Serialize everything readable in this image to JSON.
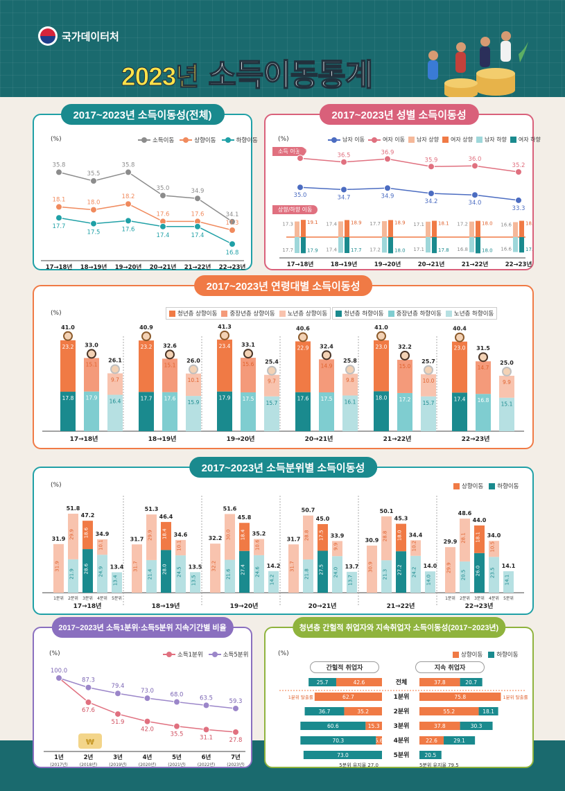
{
  "header": {
    "agency": "국가데이터처",
    "year": "2023년",
    "title": "소득이동통계"
  },
  "colors": {
    "teal": "#1a6a6e",
    "up": "#f08a5d",
    "down": "#1fa0a6",
    "gray": "#8c8c8c",
    "male": "#4b6cc1",
    "female": "#e0707f"
  },
  "p1": {
    "title": "2017~2023년 소득이동성(전체)",
    "unit": "(%)",
    "legend": [
      "소득이동",
      "상향이동",
      "하향이동"
    ],
    "chart_data": {
      "type": "line",
      "categories": [
        "17→18년",
        "18→19년",
        "19→20년",
        "20→21년",
        "21→22년",
        "22→23년"
      ],
      "series": [
        {
          "name": "소득이동",
          "values": [
            35.8,
            35.5,
            35.8,
            35.0,
            34.9,
            34.1
          ]
        },
        {
          "name": "상향이동",
          "values": [
            18.1,
            18.0,
            18.2,
            17.6,
            17.6,
            17.3
          ]
        },
        {
          "name": "하향이동",
          "values": [
            17.7,
            17.5,
            17.6,
            17.4,
            17.4,
            16.8
          ]
        }
      ]
    }
  },
  "p2": {
    "title": "2017~2023년 성별 소득이동성",
    "unit": "(%)",
    "legend": [
      "남자 이동",
      "여자 이동",
      "남자 상향",
      "여자 상향",
      "남자 하향",
      "여자 하향"
    ],
    "sec1": "소득 이동",
    "sec2": "상향/하향 이동",
    "chart_data": {
      "type": "line+bar",
      "categories": [
        "17→18년",
        "18→19년",
        "19→20년",
        "20→21년",
        "21→22년",
        "22→23년"
      ],
      "female_move": [
        37.0,
        36.5,
        36.9,
        35.9,
        36.0,
        35.2
      ],
      "male_move": [
        35.0,
        34.7,
        34.9,
        34.2,
        34.0,
        33.3
      ],
      "male_up": [
        17.3,
        17.4,
        17.7,
        17.1,
        17.2,
        16.6
      ],
      "female_up": [
        19.1,
        18.9,
        18.9,
        18.1,
        18.0,
        18.1
      ],
      "male_down": [
        17.7,
        17.4,
        17.2,
        17.1,
        16.8,
        16.6
      ],
      "female_down": [
        17.9,
        17.7,
        18.0,
        17.8,
        18.0,
        17.1
      ]
    }
  },
  "p3": {
    "title": "2017~2023년 연령대별 소득이동성",
    "unit": "(%)",
    "legend": [
      "청년층 상향이동",
      "중장년층 상향이동",
      "노년층 상향이동",
      "청년층 하향이동",
      "중장년층 하향이동",
      "노년층 하향이동"
    ],
    "chart_data": {
      "type": "stacked-bar",
      "categories": [
        "17→18년",
        "18→19년",
        "19→20년",
        "20→21년",
        "21→22년",
        "22→23년"
      ],
      "groups": [
        [
          {
            "total": 41.0,
            "up": 23.2,
            "down": 17.8
          },
          {
            "total": 33.0,
            "up": 15.1,
            "down": 17.9
          },
          {
            "total": 26.1,
            "up": 9.7,
            "down": 16.4
          }
        ],
        [
          {
            "total": 40.9,
            "up": 23.2,
            "down": 17.7
          },
          {
            "total": 32.6,
            "up": 15.1,
            "down": 17.6
          },
          {
            "total": 26.0,
            "up": 10.1,
            "down": 15.9
          }
        ],
        [
          {
            "total": 41.3,
            "up": 23.4,
            "down": 17.9
          },
          {
            "total": 33.1,
            "up": 15.6,
            "down": 17.5
          },
          {
            "total": 25.4,
            "up": 9.7,
            "down": 15.7
          }
        ],
        [
          {
            "total": 40.6,
            "up": 22.9,
            "down": 17.6
          },
          {
            "total": 32.4,
            "up": 14.9,
            "down": 17.5
          },
          {
            "total": 25.8,
            "up": 9.8,
            "down": 16.1
          }
        ],
        [
          {
            "total": 41.0,
            "up": 23.0,
            "down": 18.0
          },
          {
            "total": 32.2,
            "up": 15.0,
            "down": 17.2
          },
          {
            "total": 25.7,
            "up": 10.0,
            "down": 15.7
          }
        ],
        [
          {
            "total": 40.4,
            "up": 23.0,
            "down": 17.4
          },
          {
            "total": 31.5,
            "up": 14.7,
            "down": 16.8
          },
          {
            "total": 25.0,
            "up": 9.9,
            "down": 15.1
          }
        ]
      ]
    }
  },
  "p4": {
    "title": "2017~2023년 소득분위별 소득이동성",
    "unit": "(%)",
    "legend": [
      "상향이동",
      "하향이동"
    ],
    "quintiles": [
      "1분위",
      "2분위",
      "3분위",
      "4분위",
      "5분위"
    ],
    "chart_data": {
      "type": "stacked-bar",
      "categories": [
        "17→18년",
        "18→19년",
        "19→20년",
        "20→21년",
        "21→22년",
        "22→23년"
      ],
      "groups": [
        [
          {
            "total": 31.9,
            "up": 31.9,
            "down": null
          },
          {
            "total": 51.8,
            "up": 29.9,
            "down": 21.9
          },
          {
            "total": 47.2,
            "up": 18.6,
            "down": 28.6
          },
          {
            "total": 34.9,
            "up": 10.1,
            "down": 24.9
          },
          {
            "total": 13.4,
            "up": null,
            "down": 13.4
          }
        ],
        [
          {
            "total": 31.7,
            "up": 31.7,
            "down": null
          },
          {
            "total": 51.3,
            "up": 29.9,
            "down": 21.4
          },
          {
            "total": 46.4,
            "up": 18.4,
            "down": 28.0
          },
          {
            "total": 34.6,
            "up": 10.1,
            "down": 24.5
          },
          {
            "total": 13.5,
            "up": null,
            "down": 13.5
          }
        ],
        [
          {
            "total": 32.2,
            "up": 32.2,
            "down": null
          },
          {
            "total": 51.6,
            "up": 30.0,
            "down": 21.6
          },
          {
            "total": 45.8,
            "up": 18.4,
            "down": 27.4
          },
          {
            "total": 35.2,
            "up": 10.6,
            "down": 24.6
          },
          {
            "total": 14.2,
            "up": null,
            "down": 14.2
          }
        ],
        [
          {
            "total": 31.7,
            "up": 31.7,
            "down": null
          },
          {
            "total": 50.7,
            "up": 28.8,
            "down": 21.8
          },
          {
            "total": 45.0,
            "up": 17.5,
            "down": 27.5
          },
          {
            "total": 33.9,
            "up": 9.9,
            "down": 24.0
          },
          {
            "total": 13.7,
            "up": null,
            "down": 13.7
          }
        ],
        [
          {
            "total": 30.9,
            "up": 30.9,
            "down": null
          },
          {
            "total": 50.1,
            "up": 28.8,
            "down": 21.3
          },
          {
            "total": 45.3,
            "up": 18.0,
            "down": 27.2
          },
          {
            "total": 34.4,
            "up": 10.2,
            "down": 24.2
          },
          {
            "total": 14.0,
            "up": null,
            "down": 14.0
          }
        ],
        [
          {
            "total": 29.9,
            "up": 29.9,
            "down": null
          },
          {
            "total": 48.6,
            "up": 28.1,
            "down": 20.5
          },
          {
            "total": 44.0,
            "up": 18.1,
            "down": 26.0
          },
          {
            "total": 34.0,
            "up": 10.5,
            "down": 23.5
          },
          {
            "total": 14.1,
            "up": null,
            "down": 14.1
          }
        ]
      ]
    }
  },
  "p5": {
    "title": "2017~2023년 소득1분위·소득5분위 지속기간별 비율",
    "unit": "(%)",
    "legend": [
      "소득1분위",
      "소득5분위"
    ],
    "chart_data": {
      "type": "line",
      "categories": [
        "1년",
        "2년",
        "3년",
        "4년",
        "5년",
        "6년",
        "7년"
      ],
      "sub": [
        "(2017년)",
        "(2018년)",
        "(2019년)",
        "(2020년)",
        "(2021년)",
        "(2022년)",
        "(2023년)"
      ],
      "series": [
        {
          "name": "소득1분위",
          "values": [
            100.0,
            67.6,
            51.9,
            42.0,
            35.5,
            31.1,
            27.8
          ]
        },
        {
          "name": "소득5분위",
          "values": [
            100.0,
            87.3,
            79.4,
            73.0,
            68.0,
            63.5,
            59.3
          ]
        }
      ]
    }
  },
  "p6": {
    "title": "청년층 간헐적 취업자와 지속취업자 소득이동성(2017~2023년)",
    "unit": "(%)",
    "legend": [
      "상향이동",
      "하향이동"
    ],
    "left_head": "간헐적 취업자",
    "right_head": "지속 취업자",
    "escape": "1분위 탈출률",
    "left_foot": "5분위 유지율 27.0",
    "right_foot": "5분위 유지율 79.5",
    "chart_data": {
      "type": "diverging-bar",
      "rows": [
        "전체",
        "1분위",
        "2분위",
        "3분위",
        "4분위",
        "5분위"
      ],
      "left": [
        {
          "up": 42.6,
          "down": 25.7
        },
        {
          "up": 62.7,
          "down": null
        },
        {
          "up": 35.2,
          "down": 36.7
        },
        {
          "up": 15.3,
          "down": 60.6
        },
        {
          "up": 5.6,
          "down": 70.3
        },
        {
          "up": null,
          "down": 73.0
        }
      ],
      "right": [
        {
          "up": 37.8,
          "down": 20.7
        },
        {
          "up": 75.8,
          "down": null
        },
        {
          "up": 55.2,
          "down": 18.1
        },
        {
          "up": 37.8,
          "down": 30.3
        },
        {
          "up": 22.6,
          "down": 29.1
        },
        {
          "up": null,
          "down": 20.5
        }
      ]
    }
  }
}
